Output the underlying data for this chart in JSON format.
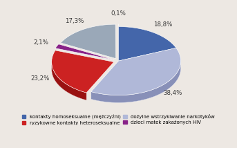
{
  "slices": [
    18.8,
    38.4,
    23.2,
    2.1,
    17.3,
    0.1
  ],
  "labels": [
    "18,8%",
    "38,4%",
    "23,2%",
    "2,1%",
    "17,3%",
    "0,1%"
  ],
  "face_colors": [
    "#4466aa",
    "#b0b8d8",
    "#cc2222",
    "#882288",
    "#9aa8b8",
    "#2a9d8f"
  ],
  "side_colors": [
    "#334d88",
    "#8890b8",
    "#991111",
    "#661166",
    "#788898",
    "#1a7d6f"
  ],
  "explode": [
    0.0,
    0.0,
    0.08,
    0.08,
    0.08,
    0.1
  ],
  "startangle": 90,
  "depth": 0.12,
  "legend_labels": [
    "kontakty homoseksualne (mężczyźni)",
    "ryzykowne kontakty heteroseksualne",
    "dożylne wstrzykiwanie narkotyków",
    "dzieci matek zakażonych HIV"
  ],
  "legend_colors": [
    "#4466aa",
    "#cc2222",
    "#b0b8d8",
    "#882288"
  ],
  "background_color": "#ede8e3",
  "label_fontsize": 6.2,
  "label_color": "#333333"
}
